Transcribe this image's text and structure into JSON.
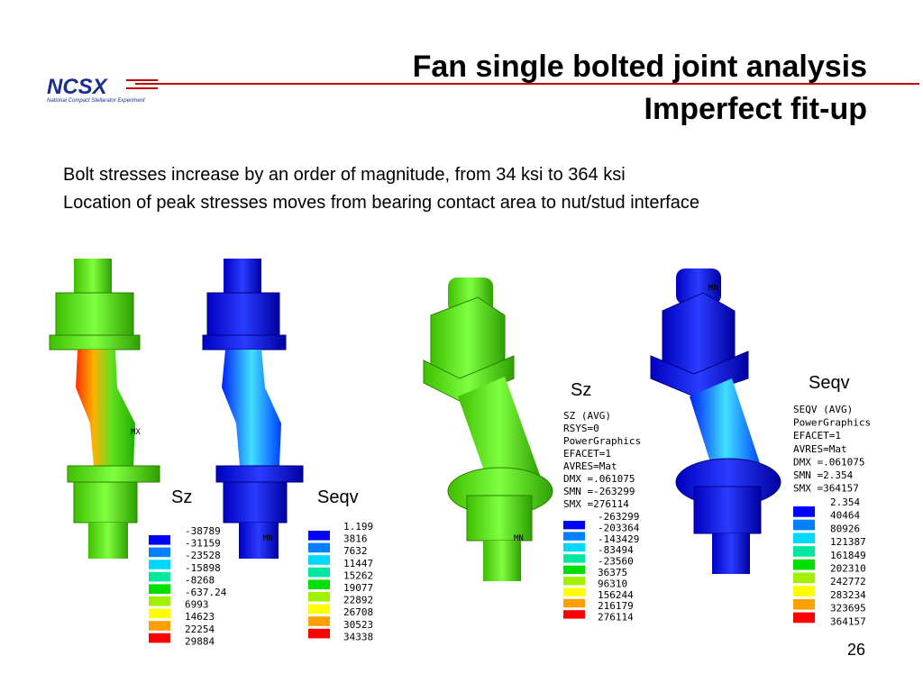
{
  "header": {
    "title": [
      "Fan single bolted joint analysis",
      "Imperfect fit-up"
    ],
    "logo": "NCSX",
    "logo_subtitle": "National Compact Stellarator Experiment"
  },
  "bullets": [
    "Bolt stresses increase by an order of magnitude, from 34 ksi to 364 ksi",
    "Location of peak stresses moves from bearing contact area to nut/stud interface"
  ],
  "figures": [
    {
      "label": "Sz",
      "marker": "MX",
      "legend": {
        "header_lines": [],
        "values": [
          "-38789",
          "-31159",
          "-23528",
          "-15898",
          "-8268",
          "-637.24",
          "6993",
          "14623",
          "22254",
          "29884"
        ]
      }
    },
    {
      "label": "Seqv",
      "marker": "MN",
      "legend": {
        "header_lines": [],
        "values": [
          "1.199",
          "3816",
          "7632",
          "11447",
          "15262",
          "19077",
          "22892",
          "26708",
          "30523",
          "34338"
        ]
      }
    },
    {
      "label": "Sz",
      "marker": "MN",
      "legend": {
        "header_lines": [
          "SZ       (AVG)",
          "RSYS=0",
          "PowerGraphics",
          "EFACET=1",
          "AVRES=Mat",
          "DMX =.061075",
          "SMN =-263299",
          "SMX =276114"
        ],
        "values": [
          "-263299",
          "-203364",
          "-143429",
          "-83494",
          "-23560",
          "36375",
          "96310",
          "156244",
          "216179",
          "276114"
        ]
      }
    },
    {
      "label": "Seqv",
      "marker": "MN",
      "legend": {
        "header_lines": [
          "SEQV     (AVG)",
          "PowerGraphics",
          "EFACET=1",
          "AVRES=Mat",
          "DMX =.061075",
          "SMN =2.354",
          "SMX =364157"
        ],
        "values": [
          "2.354",
          "40464",
          "80926",
          "121387",
          "161849",
          "202310",
          "242772",
          "283234",
          "323695",
          "364157"
        ]
      }
    }
  ],
  "page_number": "26"
}
